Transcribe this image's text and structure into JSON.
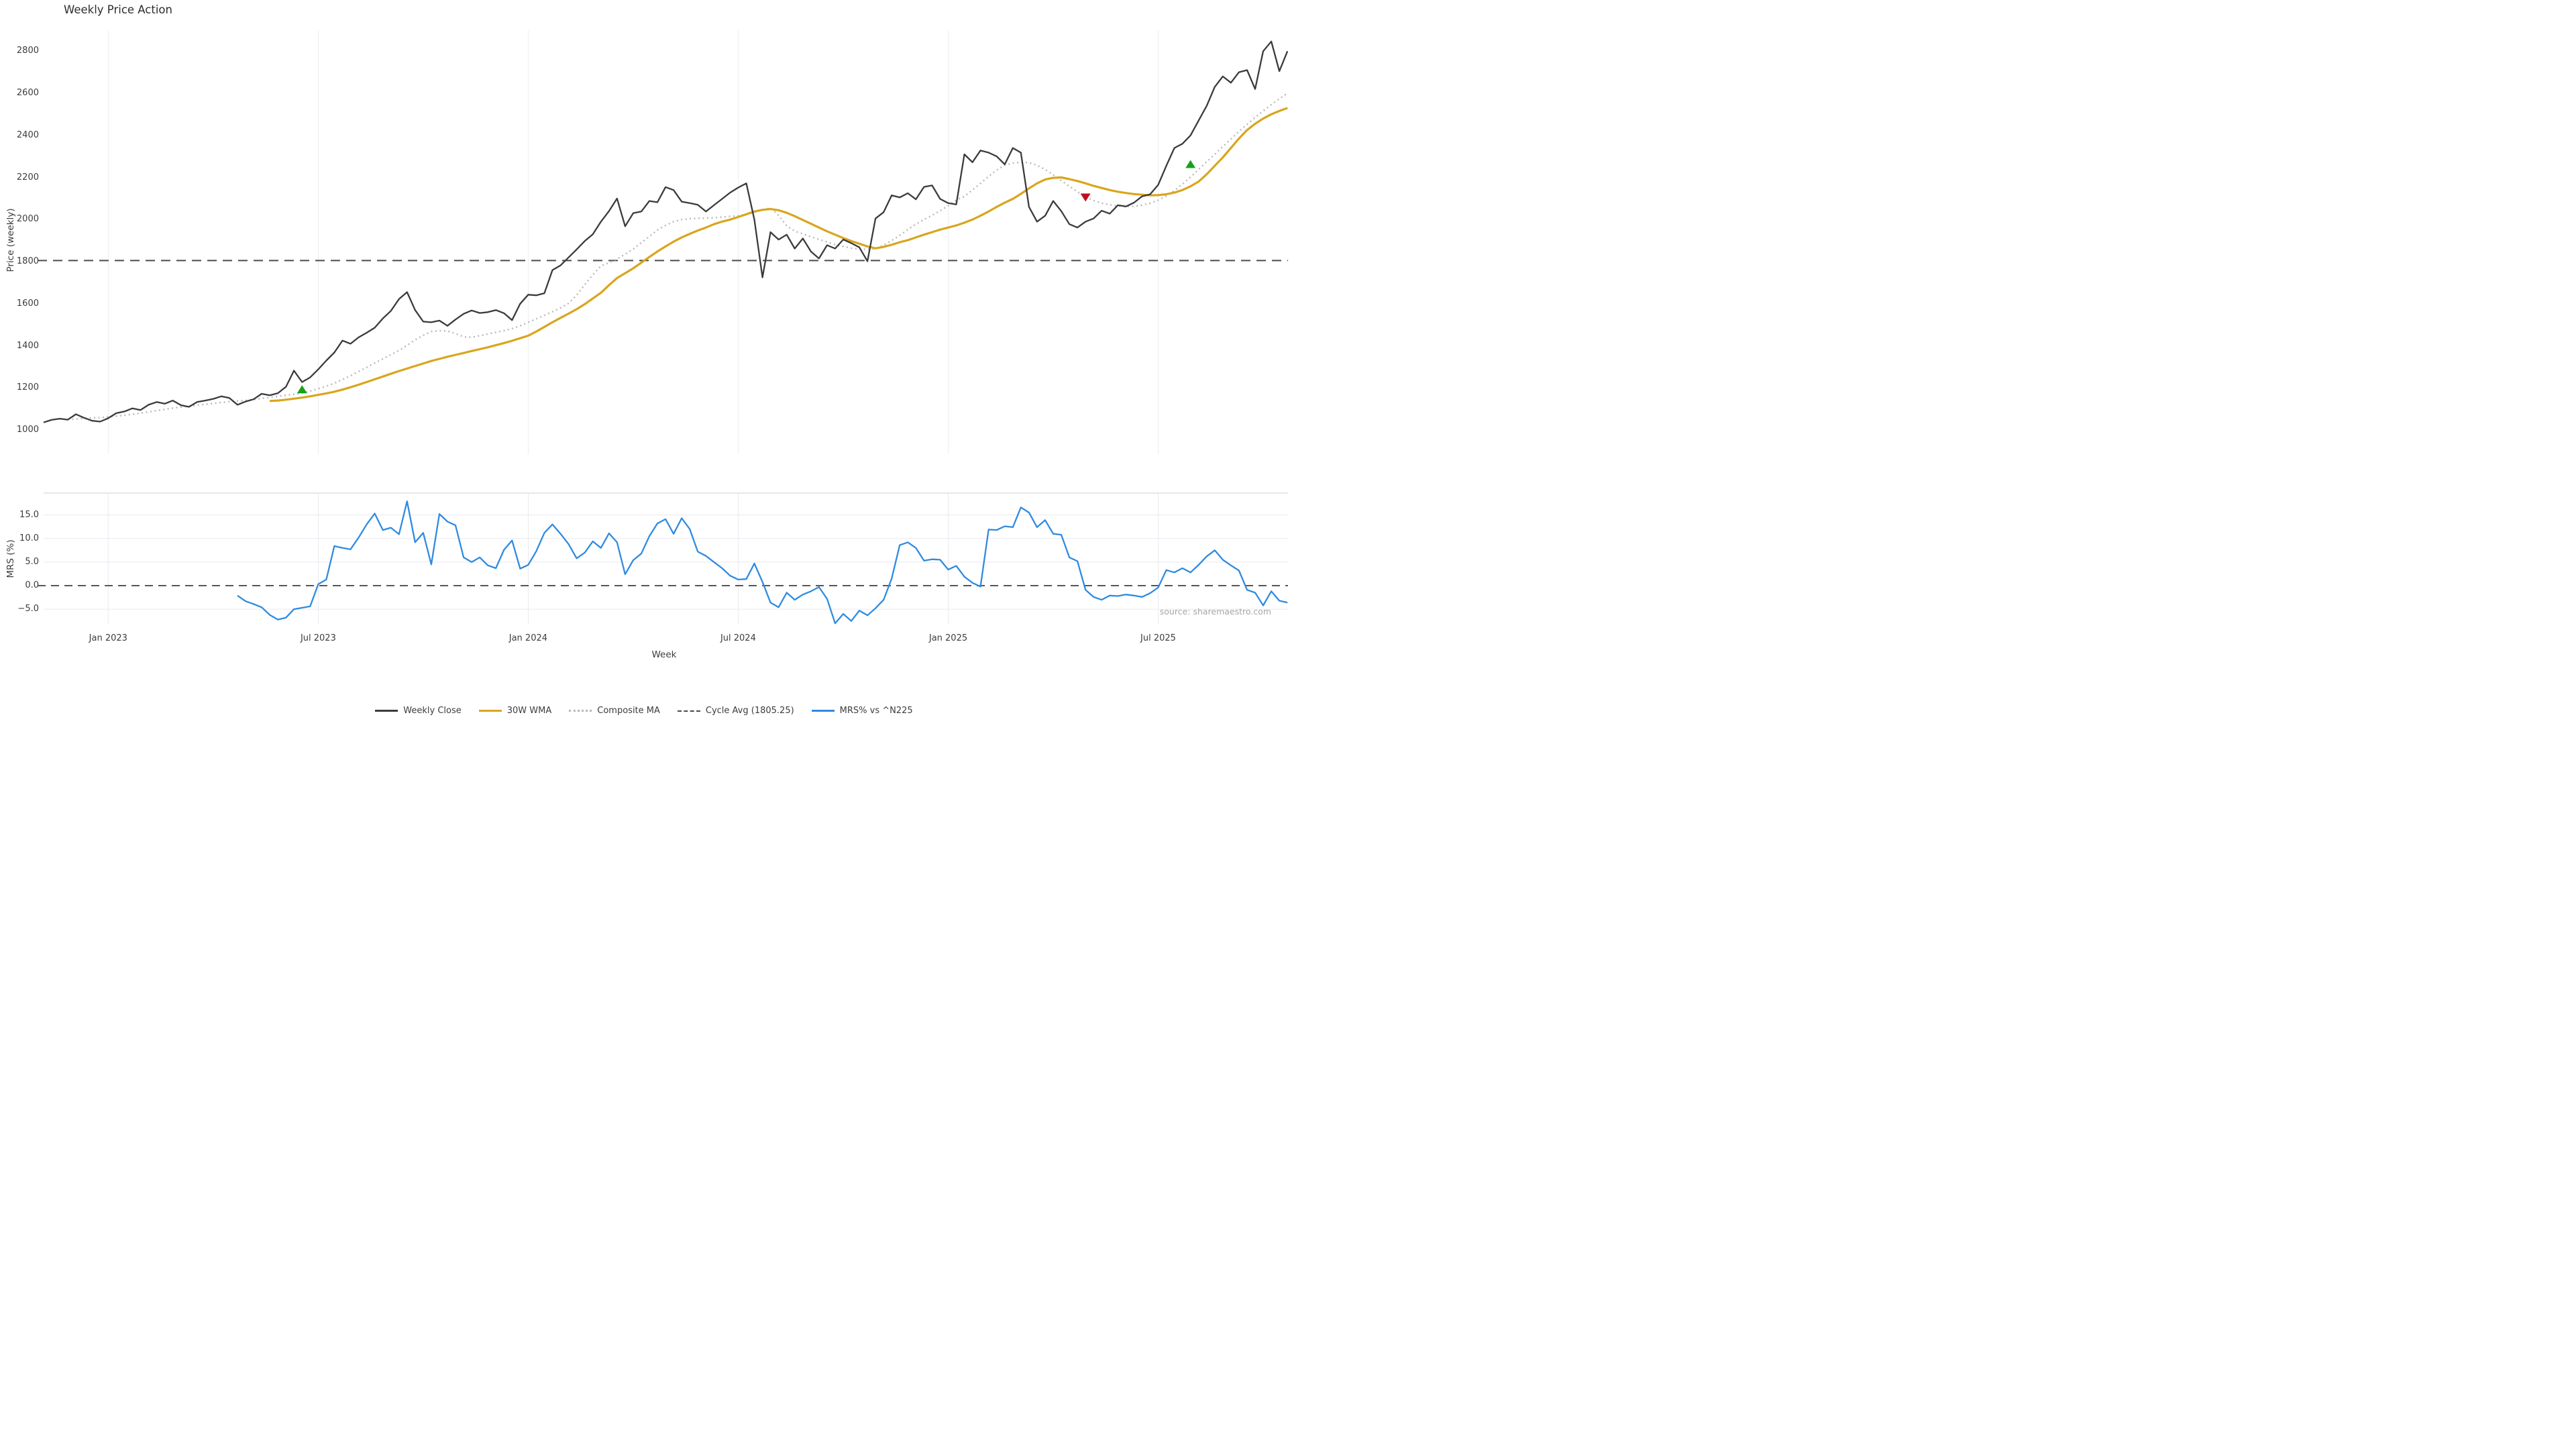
{
  "title": "Weekly Price Action",
  "source": "source: sharemaestro.com",
  "colors": {
    "weekly_close": "#3b3b3b",
    "wma_30w": "#d9a51c",
    "composite_ma": "#b8b8b8",
    "cycle_avg": "#4a4a4a",
    "mrs": "#2e8be0",
    "buy_marker": "#18a018",
    "sell_marker": "#c00e1e",
    "grid": "#ededed",
    "grid_bottom": "#e9e9f1",
    "spine": "#cfcfcf"
  },
  "x_ticks": [
    {
      "i": 8,
      "label": "Jan 2023"
    },
    {
      "i": 34,
      "label": "Jul 2023"
    },
    {
      "i": 60,
      "label": "Jan 2024"
    },
    {
      "i": 86,
      "label": "Jul 2024"
    },
    {
      "i": 112,
      "label": "Jan 2025"
    },
    {
      "i": 138,
      "label": "Jul 2025"
    }
  ],
  "legend": {
    "items": [
      {
        "label": "Weekly Close",
        "color": "#3b3b3b",
        "style": "solid"
      },
      {
        "label": "30W WMA",
        "color": "#d9a51c",
        "style": "solid"
      },
      {
        "label": "Composite MA",
        "color": "#b8b8b8",
        "style": "dotted"
      },
      {
        "label": "Cycle Avg (1805.25)",
        "color": "#4a4a4a",
        "style": "dashed"
      },
      {
        "label": "MRS% vs ^N225",
        "color": "#2e8be0",
        "style": "solid"
      }
    ]
  },
  "chart_data": [
    {
      "type": "line",
      "title": "Weekly Price Action",
      "ylabel": "Price (weekly)",
      "x_unit": "weekly index, Nov 2022 through Oct 2025",
      "ylim": [
        890,
        2900
      ],
      "yticks": [
        1000,
        1200,
        1400,
        1600,
        1800,
        2000,
        2200,
        2400,
        2600,
        2800
      ],
      "grid": "vertical-only",
      "cycle_avg": 1805.25,
      "series": [
        {
          "name": "Weekly Close",
          "color": "#3b3b3b",
          "dash": "solid",
          "values": [
            1036,
            1048,
            1054,
            1049,
            1075,
            1058,
            1044,
            1040,
            1056,
            1080,
            1088,
            1103,
            1095,
            1120,
            1133,
            1125,
            1140,
            1118,
            1110,
            1133,
            1140,
            1148,
            1160,
            1152,
            1120,
            1135,
            1146,
            1172,
            1165,
            1175,
            1205,
            1282,
            1228,
            1250,
            1288,
            1330,
            1368,
            1425,
            1410,
            1440,
            1462,
            1486,
            1530,
            1566,
            1622,
            1655,
            1570,
            1515,
            1512,
            1520,
            1495,
            1525,
            1552,
            1568,
            1556,
            1560,
            1570,
            1555,
            1522,
            1600,
            1643,
            1640,
            1650,
            1760,
            1782,
            1820,
            1858,
            1898,
            1930,
            1990,
            2040,
            2100,
            1968,
            2030,
            2038,
            2088,
            2082,
            2154,
            2140,
            2085,
            2078,
            2070,
            2038,
            2068,
            2098,
            2128,
            2152,
            2172,
            2000,
            1725,
            1940,
            1905,
            1928,
            1862,
            1910,
            1848,
            1815,
            1878,
            1862,
            1905,
            1888,
            1868,
            1802,
            2005,
            2035,
            2115,
            2105,
            2125,
            2096,
            2155,
            2162,
            2098,
            2078,
            2072,
            2310,
            2272,
            2328,
            2318,
            2300,
            2262,
            2340,
            2318,
            2060,
            1990,
            2018,
            2088,
            2040,
            1978,
            1962,
            1990,
            2005,
            2042,
            2028,
            2068,
            2062,
            2080,
            2110,
            2120,
            2165,
            2255,
            2340,
            2360,
            2400,
            2470,
            2540,
            2630,
            2680,
            2650,
            2700,
            2710,
            2620,
            2800,
            2846,
            2705,
            2800
          ]
        },
        {
          "name": "30W WMA",
          "color": "#d9a51c",
          "dash": "solid",
          "values": [
            null,
            null,
            null,
            null,
            null,
            null,
            null,
            null,
            null,
            null,
            null,
            null,
            null,
            null,
            null,
            null,
            null,
            null,
            null,
            null,
            null,
            null,
            null,
            null,
            null,
            null,
            null,
            null,
            1138,
            1140,
            1144,
            1149,
            1154,
            1160,
            1167,
            1174,
            1182,
            1192,
            1203,
            1215,
            1228,
            1241,
            1254,
            1267,
            1280,
            1292,
            1304,
            1316,
            1328,
            1338,
            1348,
            1357,
            1366,
            1375,
            1384,
            1393,
            1403,
            1413,
            1424,
            1436,
            1448,
            1468,
            1490,
            1512,
            1533,
            1553,
            1574,
            1598,
            1625,
            1652,
            1688,
            1722,
            1745,
            1768,
            1795,
            1822,
            1848,
            1872,
            1895,
            1915,
            1932,
            1948,
            1962,
            1978,
            1990,
            2000,
            2012,
            2025,
            2038,
            2046,
            2050,
            2044,
            2032,
            2016,
            1998,
            1980,
            1962,
            1944,
            1928,
            1912,
            1898,
            1885,
            1872,
            1863,
            1870,
            1880,
            1892,
            1902,
            1915,
            1928,
            1940,
            1952,
            1962,
            1972,
            1985,
            2000,
            2018,
            2038,
            2060,
            2080,
            2098,
            2122,
            2148,
            2172,
            2190,
            2198,
            2200,
            2192,
            2183,
            2172,
            2160,
            2150,
            2140,
            2132,
            2126,
            2121,
            2118,
            2115,
            2116,
            2120,
            2128,
            2140,
            2158,
            2180,
            2215,
            2255,
            2295,
            2340,
            2385,
            2425,
            2455,
            2480,
            2500,
            2516,
            2530
          ]
        },
        {
          "name": "Composite MA",
          "color": "#b8b8b8",
          "dash": "dotted",
          "values": [
            null,
            null,
            null,
            1050,
            1052,
            1055,
            1057,
            1059,
            1062,
            1066,
            1070,
            1075,
            1080,
            1086,
            1092,
            1098,
            1104,
            1109,
            1113,
            1118,
            1122,
            1126,
            1131,
            1135,
            1138,
            1141,
            1145,
            1150,
            1155,
            1160,
            1165,
            1170,
            1175,
            1185,
            1196,
            1208,
            1222,
            1240,
            1258,
            1278,
            1298,
            1318,
            1338,
            1358,
            1378,
            1402,
            1428,
            1450,
            1468,
            1472,
            1470,
            1458,
            1443,
            1440,
            1448,
            1456,
            1464,
            1472,
            1482,
            1495,
            1512,
            1528,
            1545,
            1562,
            1580,
            1602,
            1640,
            1690,
            1738,
            1780,
            1795,
            1812,
            1835,
            1860,
            1890,
            1920,
            1950,
            1972,
            1990,
            2000,
            2004,
            2006,
            2007,
            2008,
            2012,
            2015,
            2018,
            2024,
            2034,
            2046,
            2055,
            2020,
            1970,
            1945,
            1932,
            1918,
            1906,
            1893,
            1881,
            1872,
            1864,
            1860,
            1858,
            1860,
            1878,
            1900,
            1925,
            1952,
            1978,
            2000,
            2020,
            2042,
            2065,
            2092,
            2110,
            2140,
            2172,
            2205,
            2235,
            2258,
            2268,
            2272,
            2270,
            2258,
            2238,
            2212,
            2185,
            2158,
            2132,
            2108,
            2090,
            2078,
            2070,
            2065,
            2062,
            2063,
            2068,
            2078,
            2092,
            2112,
            2138,
            2168,
            2202,
            2238,
            2274,
            2310,
            2346,
            2382,
            2418,
            2452,
            2485,
            2516,
            2546,
            2574,
            2600
          ]
        }
      ],
      "markers": {
        "buy": [
          {
            "i": 32,
            "price": 1192
          },
          {
            "i": 142,
            "price": 2262
          }
        ],
        "sell": [
          {
            "i": 129,
            "price": 2106
          }
        ]
      }
    },
    {
      "type": "line",
      "ylabel": "MRS (%)",
      "xlabel": "Week",
      "ylim": [
        -8.5,
        19.6
      ],
      "yticks": [
        -5.0,
        0.0,
        5.0,
        10.0,
        15.0
      ],
      "ytick_labels": [
        "−5.0",
        "0.0",
        "5.0",
        "10.0",
        "15.0"
      ],
      "zero_line": 0,
      "grid": "both",
      "series": [
        {
          "name": "MRS% vs ^N225",
          "color": "#2e8be0",
          "dash": "solid",
          "values": [
            null,
            null,
            null,
            null,
            null,
            null,
            null,
            null,
            null,
            null,
            null,
            null,
            null,
            null,
            null,
            null,
            null,
            null,
            null,
            null,
            null,
            null,
            null,
            null,
            -2.1,
            -3.3,
            -3.9,
            -4.6,
            -6.2,
            -7.2,
            -6.8,
            -5.0,
            -4.7,
            -4.4,
            0.3,
            1.3,
            8.4,
            8.0,
            7.7,
            10.2,
            13.0,
            15.3,
            11.8,
            12.3,
            10.9,
            17.9,
            9.2,
            11.2,
            4.5,
            15.2,
            13.6,
            12.8,
            6.0,
            5.0,
            6.0,
            4.3,
            3.7,
            7.6,
            9.6,
            3.6,
            4.4,
            7.3,
            11.2,
            13.0,
            11.0,
            8.8,
            5.8,
            7.0,
            9.4,
            8.0,
            11.1,
            9.2,
            2.4,
            5.4,
            6.8,
            10.5,
            13.2,
            14.1,
            11.0,
            14.3,
            12.0,
            7.2,
            6.3,
            5.0,
            3.7,
            2.1,
            1.3,
            1.4,
            4.7,
            0.8,
            -3.6,
            -4.6,
            -1.5,
            -3.0,
            -1.9,
            -1.2,
            -0.3,
            -2.8,
            -8.0,
            -6.0,
            -7.5,
            -5.3,
            -6.3,
            -4.8,
            -3.0,
            1.5,
            8.6,
            9.2,
            8.0,
            5.3,
            5.6,
            5.5,
            3.4,
            4.2,
            1.9,
            0.6,
            -0.2,
            11.9,
            11.8,
            12.6,
            12.4,
            16.6,
            15.5,
            12.4,
            13.9,
            11.0,
            10.8,
            6.0,
            5.2,
            -0.9,
            -2.4,
            -3.0,
            -2.1,
            -2.2,
            -1.9,
            -2.1,
            -2.4,
            -1.6,
            -0.4,
            3.3,
            2.8,
            3.7,
            2.8,
            4.4,
            6.2,
            7.5,
            5.5,
            4.3,
            3.2,
            -0.9,
            -1.5,
            -4.2,
            -1.2,
            -3.2,
            -3.6
          ]
        }
      ]
    }
  ]
}
